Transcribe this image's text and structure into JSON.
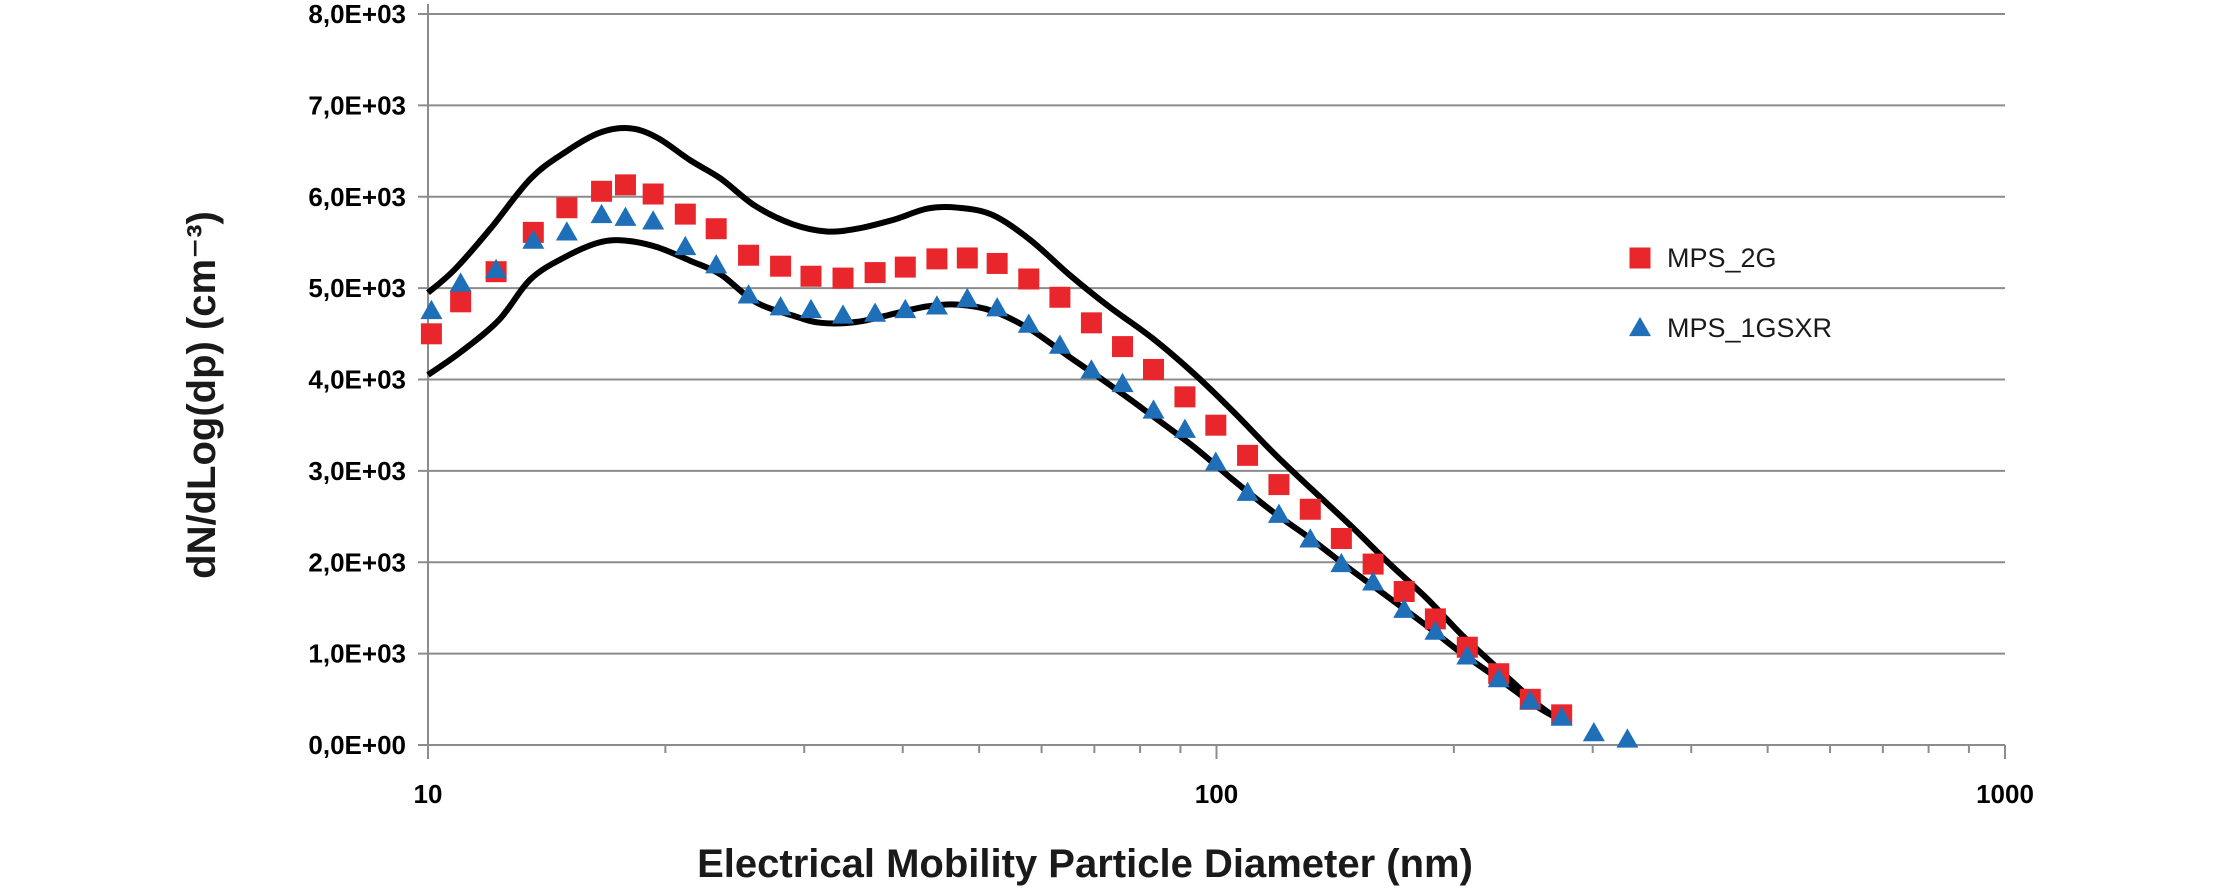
{
  "chart_data": {
    "type": "scatter",
    "title": "",
    "xlabel": "Electrical Mobility Particle Diameter (nm)",
    "ylabel": "dN/dLog(dp) (cm⁻³)",
    "x_scale": "log",
    "xlim": [
      10,
      1000
    ],
    "ylim": [
      0,
      8000
    ],
    "grid": "horizontal",
    "legend_position": "right",
    "x_ticks": [
      {
        "value": 10,
        "label": "10"
      },
      {
        "value": 100,
        "label": "100"
      },
      {
        "value": 1000,
        "label": "1000"
      }
    ],
    "y_ticks": [
      {
        "value": 0,
        "label": "0,0E+00"
      },
      {
        "value": 1000,
        "label": "1,0E+03"
      },
      {
        "value": 2000,
        "label": "2,0E+03"
      },
      {
        "value": 3000,
        "label": "3,0E+03"
      },
      {
        "value": 4000,
        "label": "4,0E+03"
      },
      {
        "value": 5000,
        "label": "5,0E+03"
      },
      {
        "value": 6000,
        "label": "6,0E+03"
      },
      {
        "value": 7000,
        "label": "7,0E+03"
      },
      {
        "value": 8000,
        "label": "8,0E+03"
      }
    ],
    "series": [
      {
        "name": "MPS_2G",
        "marker": "square",
        "color": "#e8262b",
        "points": [
          [
            10.1,
            4500
          ],
          [
            11.0,
            4850
          ],
          [
            12.2,
            5180
          ],
          [
            13.6,
            5610
          ],
          [
            15.0,
            5880
          ],
          [
            16.6,
            6060
          ],
          [
            17.8,
            6130
          ],
          [
            19.3,
            6030
          ],
          [
            21.2,
            5810
          ],
          [
            23.2,
            5650
          ],
          [
            25.5,
            5360
          ],
          [
            28.0,
            5240
          ],
          [
            30.6,
            5130
          ],
          [
            33.6,
            5110
          ],
          [
            36.9,
            5170
          ],
          [
            40.3,
            5230
          ],
          [
            44.2,
            5320
          ],
          [
            48.3,
            5330
          ],
          [
            52.7,
            5270
          ],
          [
            57.8,
            5100
          ],
          [
            63.3,
            4900
          ],
          [
            69.4,
            4620
          ],
          [
            76.0,
            4360
          ],
          [
            83.2,
            4110
          ],
          [
            91.2,
            3810
          ],
          [
            99.8,
            3500
          ],
          [
            109.5,
            3170
          ],
          [
            120.0,
            2850
          ],
          [
            131.5,
            2580
          ],
          [
            144.0,
            2260
          ],
          [
            158.0,
            1980
          ],
          [
            173.0,
            1680
          ],
          [
            189.5,
            1380
          ],
          [
            208.0,
            1070
          ],
          [
            228.0,
            780
          ],
          [
            250.0,
            500
          ],
          [
            274.0,
            330
          ]
        ]
      },
      {
        "name": "MPS_1GSXR",
        "marker": "triangle",
        "color": "#1f6fb8",
        "points": [
          [
            10.1,
            4750
          ],
          [
            11.0,
            5050
          ],
          [
            12.2,
            5200
          ],
          [
            13.6,
            5520
          ],
          [
            15.0,
            5610
          ],
          [
            16.6,
            5800
          ],
          [
            17.8,
            5770
          ],
          [
            19.3,
            5730
          ],
          [
            21.2,
            5450
          ],
          [
            23.2,
            5250
          ],
          [
            25.5,
            4920
          ],
          [
            28.0,
            4790
          ],
          [
            30.6,
            4760
          ],
          [
            33.6,
            4700
          ],
          [
            36.9,
            4720
          ],
          [
            40.3,
            4760
          ],
          [
            44.2,
            4800
          ],
          [
            48.3,
            4880
          ],
          [
            52.7,
            4780
          ],
          [
            57.8,
            4600
          ],
          [
            63.3,
            4370
          ],
          [
            69.4,
            4100
          ],
          [
            76.0,
            3950
          ],
          [
            83.2,
            3660
          ],
          [
            91.2,
            3450
          ],
          [
            99.8,
            3090
          ],
          [
            109.5,
            2760
          ],
          [
            120.0,
            2520
          ],
          [
            131.5,
            2250
          ],
          [
            144.0,
            1980
          ],
          [
            158.0,
            1780
          ],
          [
            173.0,
            1480
          ],
          [
            189.5,
            1240
          ],
          [
            208.0,
            970
          ],
          [
            228.0,
            720
          ],
          [
            250.0,
            480
          ],
          [
            274.0,
            300
          ],
          [
            301.0,
            130
          ],
          [
            332.0,
            60
          ]
        ]
      }
    ],
    "envelope_lines": [
      {
        "color": "#000000",
        "points": [
          [
            10.0,
            4950
          ],
          [
            10.8,
            5200
          ],
          [
            12.0,
            5650
          ],
          [
            13.5,
            6200
          ],
          [
            15.0,
            6500
          ],
          [
            16.5,
            6700
          ],
          [
            18.0,
            6750
          ],
          [
            19.5,
            6650
          ],
          [
            21.5,
            6400
          ],
          [
            23.5,
            6200
          ],
          [
            26.0,
            5900
          ],
          [
            29.0,
            5700
          ],
          [
            32.0,
            5620
          ],
          [
            35.0,
            5650
          ],
          [
            39.0,
            5750
          ],
          [
            43.0,
            5870
          ],
          [
            47.0,
            5880
          ],
          [
            52.0,
            5800
          ],
          [
            58.0,
            5530
          ],
          [
            65.0,
            5150
          ],
          [
            73.0,
            4800
          ],
          [
            83.0,
            4450
          ],
          [
            94.0,
            4050
          ],
          [
            105.0,
            3650
          ],
          [
            118.0,
            3200
          ],
          [
            132.0,
            2800
          ],
          [
            148.0,
            2400
          ],
          [
            165.0,
            2000
          ],
          [
            185.0,
            1600
          ],
          [
            205.0,
            1200
          ],
          [
            230.0,
            800
          ],
          [
            255.0,
            450
          ],
          [
            275.0,
            250
          ]
        ]
      },
      {
        "color": "#000000",
        "points": [
          [
            10.0,
            4050
          ],
          [
            11.0,
            4300
          ],
          [
            12.3,
            4650
          ],
          [
            13.5,
            5100
          ],
          [
            15.0,
            5350
          ],
          [
            16.5,
            5500
          ],
          [
            17.8,
            5520
          ],
          [
            19.5,
            5450
          ],
          [
            21.5,
            5300
          ],
          [
            23.5,
            5150
          ],
          [
            26.0,
            4850
          ],
          [
            29.0,
            4700
          ],
          [
            31.5,
            4620
          ],
          [
            35.0,
            4630
          ],
          [
            39.0,
            4720
          ],
          [
            43.0,
            4800
          ],
          [
            47.0,
            4820
          ],
          [
            52.0,
            4750
          ],
          [
            58.0,
            4550
          ],
          [
            65.0,
            4250
          ],
          [
            73.0,
            3950
          ],
          [
            83.0,
            3600
          ],
          [
            94.0,
            3250
          ],
          [
            105.0,
            2900
          ],
          [
            118.0,
            2550
          ],
          [
            132.0,
            2250
          ],
          [
            148.0,
            1920
          ],
          [
            165.0,
            1620
          ],
          [
            185.0,
            1300
          ],
          [
            205.0,
            1000
          ],
          [
            230.0,
            700
          ],
          [
            255.0,
            420
          ],
          [
            275.0,
            260
          ]
        ]
      }
    ]
  }
}
